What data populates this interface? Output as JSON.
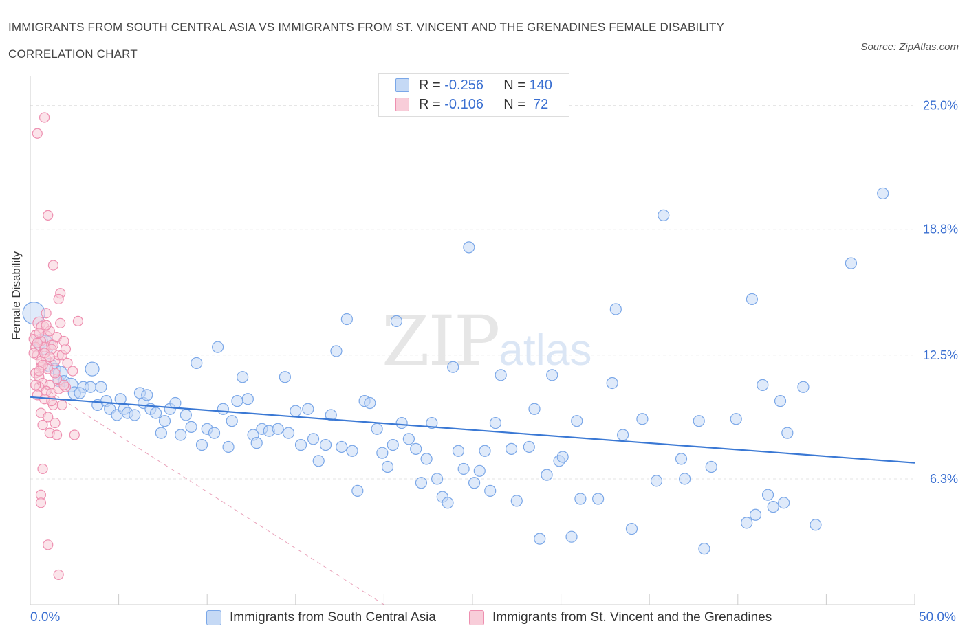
{
  "header": {
    "title": "IMMIGRANTS FROM SOUTH CENTRAL ASIA VS IMMIGRANTS FROM ST. VINCENT AND THE GRENADINES FEMALE DISABILITY CORRELATION CHART",
    "source": "Source: ZipAtlas.com"
  },
  "watermark": {
    "zip": "ZIP",
    "atlas": "atlas"
  },
  "legend": {
    "rows": [
      {
        "r_label": "R = ",
        "r_value": "-0.256",
        "n_label": "N = ",
        "n_value": "140"
      },
      {
        "r_label": "R = ",
        "r_value": "-0.106",
        "n_label": "N = ",
        "n_value": " 72"
      }
    ]
  },
  "chart_data": {
    "type": "scatter",
    "title": "IMMIGRANTS FROM SOUTH CENTRAL ASIA VS IMMIGRANTS FROM ST. VINCENT AND THE GRENADINES FEMALE DISABILITY CORRELATION CHART",
    "ylabel": "Female Disability",
    "xlim": [
      0,
      50
    ],
    "ylim": [
      0,
      26.5
    ],
    "x_tick_labels": [
      "0.0%",
      "50.0%"
    ],
    "y_ticks": [
      {
        "value": 6.3,
        "label": "6.3%"
      },
      {
        "value": 12.5,
        "label": "12.5%"
      },
      {
        "value": 18.8,
        "label": "18.8%"
      },
      {
        "value": 25.0,
        "label": "25.0%"
      }
    ],
    "grid": true,
    "legend_position": "top-center",
    "series": [
      {
        "name": "Immigrants from South Central Asia",
        "color": "#7aa7e8",
        "fill": "#c5d9f5",
        "line_color": "#3a78d4",
        "trend": {
          "x": [
            0,
            50
          ],
          "y": [
            10.4,
            7.1
          ]
        },
        "points": [
          [
            0.2,
            14.6,
            16
          ],
          [
            0.6,
            13.2,
            10
          ],
          [
            0.8,
            13.0,
            14
          ],
          [
            1.1,
            12.0,
            10
          ],
          [
            1.4,
            11.8,
            8
          ],
          [
            1.7,
            11.6,
            10
          ],
          [
            1.6,
            11.2,
            8
          ],
          [
            1.9,
            11.2,
            8
          ],
          [
            2.3,
            11.0,
            10
          ],
          [
            2.5,
            10.6,
            9
          ],
          [
            3.0,
            10.9,
            8
          ],
          [
            2.8,
            10.6,
            8
          ],
          [
            3.4,
            10.9,
            8
          ],
          [
            3.5,
            11.8,
            10
          ],
          [
            4.0,
            10.9,
            8
          ],
          [
            3.8,
            10.0,
            8
          ],
          [
            4.3,
            10.2,
            8
          ],
          [
            4.5,
            9.8,
            8
          ],
          [
            4.9,
            9.5,
            8
          ],
          [
            5.1,
            10.3,
            8
          ],
          [
            5.3,
            9.8,
            8
          ],
          [
            5.5,
            9.6,
            8
          ],
          [
            5.9,
            9.5,
            8
          ],
          [
            6.2,
            10.6,
            8
          ],
          [
            6.4,
            10.1,
            8
          ],
          [
            6.6,
            10.5,
            8
          ],
          [
            6.8,
            9.8,
            8
          ],
          [
            7.1,
            9.6,
            8
          ],
          [
            7.4,
            8.6,
            8
          ],
          [
            7.6,
            9.2,
            8
          ],
          [
            7.9,
            9.8,
            8
          ],
          [
            8.2,
            10.1,
            8
          ],
          [
            8.5,
            8.5,
            8
          ],
          [
            8.8,
            9.5,
            8
          ],
          [
            9.1,
            8.9,
            8
          ],
          [
            9.4,
            12.1,
            8
          ],
          [
            9.7,
            8.0,
            8
          ],
          [
            10.0,
            8.8,
            8
          ],
          [
            10.4,
            8.6,
            8
          ],
          [
            10.6,
            12.9,
            8
          ],
          [
            10.9,
            9.8,
            8
          ],
          [
            11.2,
            7.9,
            8
          ],
          [
            11.4,
            9.2,
            8
          ],
          [
            11.7,
            10.2,
            8
          ],
          [
            12.0,
            11.4,
            8
          ],
          [
            12.3,
            10.3,
            8
          ],
          [
            12.6,
            8.5,
            8
          ],
          [
            12.8,
            8.1,
            8
          ],
          [
            13.1,
            8.8,
            8
          ],
          [
            13.5,
            8.7,
            8
          ],
          [
            14.0,
            8.8,
            8
          ],
          [
            14.4,
            11.4,
            8
          ],
          [
            14.6,
            8.6,
            8
          ],
          [
            15.0,
            9.7,
            8
          ],
          [
            15.3,
            8.0,
            8
          ],
          [
            15.7,
            9.8,
            8
          ],
          [
            16.0,
            8.3,
            8
          ],
          [
            16.3,
            7.2,
            8
          ],
          [
            16.7,
            8.0,
            8
          ],
          [
            17.0,
            9.5,
            8
          ],
          [
            17.3,
            12.7,
            8
          ],
          [
            17.6,
            7.9,
            8
          ],
          [
            17.9,
            14.3,
            8
          ],
          [
            18.2,
            7.7,
            8
          ],
          [
            18.5,
            5.7,
            8
          ],
          [
            18.9,
            10.2,
            8
          ],
          [
            19.2,
            10.1,
            8
          ],
          [
            19.6,
            8.8,
            8
          ],
          [
            19.9,
            7.6,
            8
          ],
          [
            20.2,
            6.9,
            8
          ],
          [
            20.5,
            8.0,
            8
          ],
          [
            20.7,
            14.2,
            8
          ],
          [
            21.0,
            9.1,
            8
          ],
          [
            21.4,
            8.3,
            8
          ],
          [
            21.8,
            7.8,
            8
          ],
          [
            22.1,
            6.1,
            8
          ],
          [
            22.4,
            7.3,
            8
          ],
          [
            22.7,
            9.1,
            8
          ],
          [
            23.0,
            6.3,
            8
          ],
          [
            23.3,
            5.4,
            8
          ],
          [
            23.6,
            5.1,
            8
          ],
          [
            23.9,
            11.9,
            8
          ],
          [
            24.2,
            7.7,
            8
          ],
          [
            24.5,
            6.8,
            8
          ],
          [
            24.8,
            17.9,
            8
          ],
          [
            25.1,
            6.1,
            8
          ],
          [
            25.4,
            6.7,
            8
          ],
          [
            25.7,
            7.7,
            8
          ],
          [
            26.0,
            5.7,
            8
          ],
          [
            26.3,
            9.1,
            8
          ],
          [
            26.6,
            11.5,
            8
          ],
          [
            27.2,
            7.8,
            8
          ],
          [
            27.5,
            5.2,
            8
          ],
          [
            28.2,
            7.9,
            8
          ],
          [
            28.5,
            9.8,
            8
          ],
          [
            28.8,
            3.3,
            8
          ],
          [
            29.2,
            6.5,
            8
          ],
          [
            29.5,
            11.5,
            8
          ],
          [
            29.9,
            7.2,
            8
          ],
          [
            30.1,
            7.4,
            8
          ],
          [
            30.6,
            3.4,
            8
          ],
          [
            30.9,
            9.2,
            8
          ],
          [
            31.1,
            5.3,
            8
          ],
          [
            32.1,
            5.3,
            8
          ],
          [
            32.9,
            11.1,
            8
          ],
          [
            33.1,
            14.8,
            8
          ],
          [
            33.5,
            8.5,
            8
          ],
          [
            34.0,
            3.8,
            8
          ],
          [
            34.6,
            9.3,
            8
          ],
          [
            35.4,
            6.2,
            8
          ],
          [
            35.8,
            19.5,
            8
          ],
          [
            37.0,
            6.3,
            8
          ],
          [
            36.8,
            7.3,
            8
          ],
          [
            37.8,
            9.2,
            8
          ],
          [
            38.1,
            2.8,
            8
          ],
          [
            38.5,
            6.9,
            8
          ],
          [
            39.9,
            9.3,
            8
          ],
          [
            40.5,
            4.1,
            8
          ],
          [
            40.8,
            15.3,
            8
          ],
          [
            41.0,
            4.5,
            8
          ],
          [
            41.4,
            11.0,
            8
          ],
          [
            41.7,
            5.5,
            8
          ],
          [
            42.0,
            4.9,
            8
          ],
          [
            42.4,
            10.2,
            8
          ],
          [
            42.6,
            5.1,
            8
          ],
          [
            42.8,
            8.6,
            8
          ],
          [
            43.7,
            10.9,
            8
          ],
          [
            44.4,
            4.0,
            8
          ],
          [
            46.4,
            17.1,
            8
          ],
          [
            48.2,
            20.6,
            8
          ]
        ]
      },
      {
        "name": "Immigrants from St. Vincent and the Grenadines",
        "color": "#ee8fb0",
        "fill": "#f8cdd9",
        "line_color": "#e07a9c",
        "trend": {
          "x": [
            0,
            20
          ],
          "y": [
            11.3,
            0
          ]
        },
        "points": [
          [
            0.4,
            23.6,
            7
          ],
          [
            0.8,
            24.4,
            7
          ],
          [
            0.5,
            14.1,
            9
          ],
          [
            0.7,
            13.9,
            9
          ],
          [
            0.3,
            13.5,
            7
          ],
          [
            0.9,
            13.4,
            9
          ],
          [
            0.2,
            13.3,
            7
          ],
          [
            1.1,
            13.7,
            7
          ],
          [
            0.6,
            13.2,
            7
          ],
          [
            0.3,
            12.9,
            7
          ],
          [
            0.8,
            12.9,
            7
          ],
          [
            1.2,
            13.0,
            7
          ],
          [
            0.4,
            12.5,
            7
          ],
          [
            0.9,
            12.3,
            7
          ],
          [
            1.4,
            12.2,
            7
          ],
          [
            0.6,
            11.9,
            7
          ],
          [
            1.0,
            11.8,
            7
          ],
          [
            0.3,
            11.6,
            7
          ],
          [
            0.5,
            11.4,
            7
          ],
          [
            1.6,
            12.5,
            7
          ],
          [
            1.3,
            13.0,
            7
          ],
          [
            1.7,
            14.1,
            7
          ],
          [
            0.7,
            11.1,
            7
          ],
          [
            1.1,
            11.0,
            7
          ],
          [
            1.5,
            11.3,
            7
          ],
          [
            0.5,
            10.9,
            7
          ],
          [
            0.9,
            10.7,
            7
          ],
          [
            1.2,
            10.6,
            7
          ],
          [
            1.6,
            10.8,
            7
          ],
          [
            2.0,
            10.9,
            7
          ],
          [
            0.4,
            10.5,
            7
          ],
          [
            0.8,
            10.3,
            7
          ],
          [
            1.3,
            10.0,
            7
          ],
          [
            1.8,
            10.0,
            7
          ],
          [
            0.6,
            9.6,
            7
          ],
          [
            1.0,
            9.4,
            7
          ],
          [
            1.4,
            9.1,
            7
          ],
          [
            0.7,
            9.0,
            7
          ],
          [
            1.1,
            8.6,
            7
          ],
          [
            1.5,
            8.5,
            7
          ],
          [
            2.5,
            8.5,
            7
          ],
          [
            1.8,
            12.5,
            7
          ],
          [
            2.1,
            12.1,
            7
          ],
          [
            2.4,
            11.7,
            7
          ],
          [
            2.7,
            14.2,
            7
          ],
          [
            1.7,
            15.6,
            7
          ],
          [
            1.3,
            17.0,
            7
          ],
          [
            1.0,
            19.5,
            7
          ],
          [
            1.6,
            15.3,
            7
          ],
          [
            0.6,
            12.2,
            7
          ],
          [
            0.2,
            12.6,
            7
          ],
          [
            0.3,
            11.0,
            7
          ],
          [
            0.9,
            14.6,
            7
          ],
          [
            1.2,
            12.8,
            7
          ],
          [
            0.5,
            13.6,
            7
          ],
          [
            2.0,
            12.8,
            7
          ],
          [
            0.8,
            12.6,
            7
          ],
          [
            1.9,
            11.0,
            7
          ],
          [
            0.7,
            6.8,
            7
          ],
          [
            0.6,
            5.5,
            7
          ],
          [
            0.6,
            5.1,
            7
          ],
          [
            1.0,
            3.0,
            7
          ],
          [
            1.6,
            1.5,
            7
          ],
          [
            0.9,
            14.0,
            7
          ],
          [
            1.5,
            13.4,
            7
          ],
          [
            0.4,
            13.1,
            7
          ],
          [
            1.1,
            12.4,
            7
          ],
          [
            0.7,
            12.0,
            7
          ],
          [
            1.4,
            11.6,
            7
          ],
          [
            1.9,
            13.2,
            7
          ],
          [
            0.5,
            11.7,
            7
          ],
          [
            1.2,
            10.2,
            7
          ]
        ]
      }
    ]
  },
  "bottom_legend": {
    "items": [
      {
        "label": "Immigrants from South Central Asia"
      },
      {
        "label": "Immigrants from St. Vincent and the Grenadines"
      }
    ]
  },
  "axis": {
    "x_left": "0.0%",
    "x_right": "50.0%",
    "ylabel": "Female Disability"
  }
}
